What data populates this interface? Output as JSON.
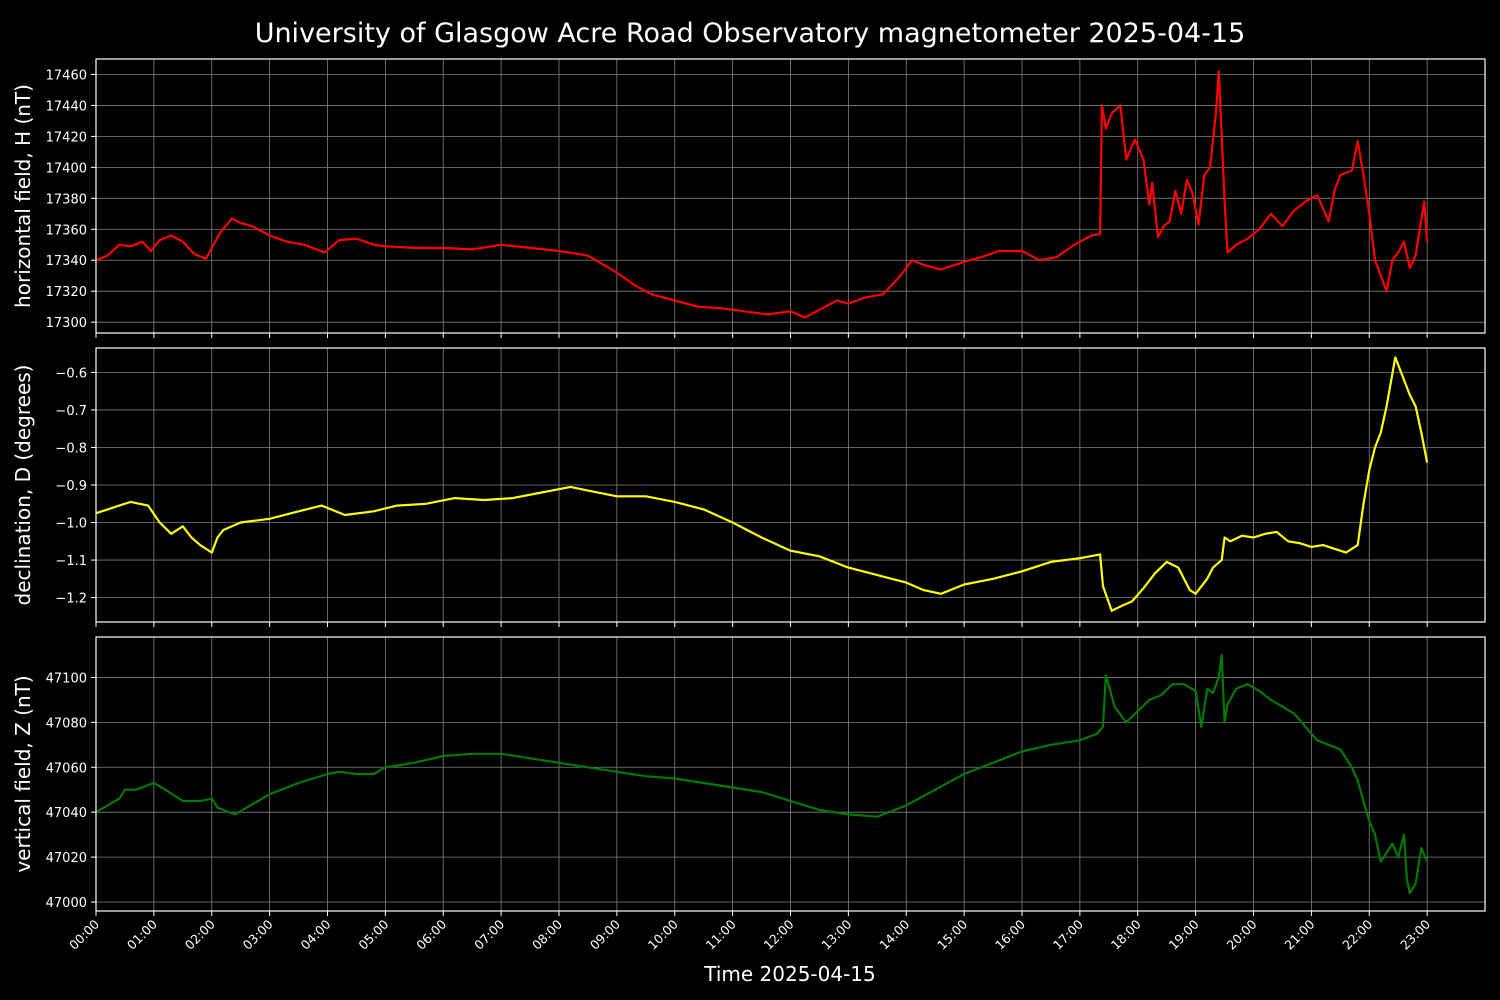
{
  "title": "University of Glasgow Acre Road Observatory magnetometer 2025-04-15",
  "xlabel": "Time 2025-04-15",
  "colors": {
    "background": "#000000",
    "axes": "#ffffff",
    "grid": "#808080",
    "H": "#ff0000",
    "D": "#ffff00",
    "Z": "#007a00"
  },
  "chart_data": [
    {
      "type": "line",
      "ylabel": "horizontal field, H (nT)",
      "ylim": [
        17293,
        17470
      ],
      "yticks": [
        17300,
        17320,
        17340,
        17360,
        17380,
        17400,
        17420,
        17440,
        17460
      ],
      "xlim": [
        0,
        24
      ],
      "xticks": [
        "00:00",
        "01:00",
        "02:00",
        "03:00",
        "04:00",
        "05:00",
        "06:00",
        "07:00",
        "08:00",
        "09:00",
        "10:00",
        "11:00",
        "12:00",
        "13:00",
        "14:00",
        "15:00",
        "16:00",
        "17:00",
        "18:00",
        "19:00",
        "20:00",
        "21:00",
        "22:00",
        "23:00"
      ],
      "grid": true,
      "series": [
        {
          "color": "#ff0000",
          "x": [
            0,
            0.2,
            0.4,
            0.6,
            0.8,
            0.95,
            1.1,
            1.3,
            1.5,
            1.7,
            1.9,
            2.0,
            2.15,
            2.35,
            2.5,
            2.7,
            3.0,
            3.3,
            3.6,
            3.95,
            4.2,
            4.5,
            4.8,
            5.0,
            5.5,
            6.0,
            6.5,
            7.0,
            7.5,
            8.0,
            8.5,
            9.0,
            9.3,
            9.6,
            10.0,
            10.4,
            10.8,
            11.2,
            11.6,
            12.0,
            12.25,
            12.5,
            12.8,
            13.0,
            13.3,
            13.6,
            13.9,
            14.1,
            14.3,
            14.6,
            15.0,
            15.3,
            15.6,
            16.0,
            16.3,
            16.6,
            16.9,
            17.2,
            17.35,
            17.38,
            17.45,
            17.55,
            17.7,
            17.8,
            17.95,
            18.1,
            18.2,
            18.25,
            18.35,
            18.45,
            18.55,
            18.65,
            18.75,
            18.85,
            18.95,
            19.05,
            19.15,
            19.25,
            19.35,
            19.4,
            19.45,
            19.5,
            19.55,
            19.7,
            19.9,
            20.1,
            20.3,
            20.5,
            20.7,
            20.9,
            21.1,
            21.3,
            21.4,
            21.5,
            21.7,
            21.8,
            21.9,
            22.0,
            22.1,
            22.2,
            22.3,
            22.4,
            22.5,
            22.6,
            22.7,
            22.8,
            22.95,
            23.0
          ],
          "y": [
            17340,
            17343,
            17350,
            17349,
            17352,
            17346,
            17353,
            17356,
            17352,
            17344,
            17341,
            17348,
            17358,
            17367,
            17364,
            17362,
            17356,
            17352,
            17350,
            17345,
            17353,
            17354,
            17350,
            17349,
            17348,
            17348,
            17347,
            17350,
            17348,
            17346,
            17343,
            17332,
            17324,
            17318,
            17314,
            17310,
            17309,
            17307,
            17305,
            17307,
            17303,
            17308,
            17314,
            17312,
            17316,
            17318,
            17330,
            17340,
            17337,
            17334,
            17339,
            17342,
            17346,
            17346,
            17340,
            17342,
            17350,
            17356,
            17357,
            17440,
            17425,
            17435,
            17440,
            17405,
            17418,
            17405,
            17376,
            17390,
            17355,
            17362,
            17365,
            17385,
            17370,
            17392,
            17383,
            17363,
            17395,
            17400,
            17435,
            17462,
            17420,
            17378,
            17345,
            17350,
            17354,
            17360,
            17370,
            17362,
            17372,
            17378,
            17382,
            17365,
            17385,
            17395,
            17398,
            17417,
            17395,
            17370,
            17340,
            17330,
            17320,
            17340,
            17345,
            17352,
            17335,
            17343,
            17378,
            17352
          ]
        }
      ]
    },
    {
      "type": "line",
      "ylabel": "declination, D (degrees)",
      "ylim": [
        -1.265,
        -0.535
      ],
      "yticks": [
        -1.2,
        -1.1,
        -1.0,
        -0.9,
        -0.8,
        -0.7,
        -0.6
      ],
      "yticklabels": [
        "−1.2",
        "−1.1",
        "−1.0",
        "−0.9",
        "−0.8",
        "−0.7",
        "−0.6"
      ],
      "xlim": [
        0,
        24
      ],
      "grid": true,
      "series": [
        {
          "color": "#ffff00",
          "x": [
            0,
            0.2,
            0.4,
            0.6,
            0.9,
            1.1,
            1.3,
            1.5,
            1.65,
            1.8,
            2.0,
            2.1,
            2.2,
            2.5,
            3.0,
            3.5,
            3.9,
            4.3,
            4.8,
            5.2,
            5.7,
            6.2,
            6.7,
            7.2,
            7.7,
            8.2,
            8.5,
            9.0,
            9.5,
            10.0,
            10.5,
            11.0,
            11.5,
            12.0,
            12.5,
            13.0,
            13.5,
            14.0,
            14.3,
            14.6,
            15.0,
            15.5,
            16.0,
            16.5,
            17.0,
            17.35,
            17.4,
            17.55,
            17.75,
            17.9,
            18.1,
            18.3,
            18.5,
            18.7,
            18.9,
            19.0,
            19.2,
            19.3,
            19.45,
            19.5,
            19.6,
            19.8,
            20.0,
            20.2,
            20.4,
            20.6,
            20.8,
            21.0,
            21.2,
            21.4,
            21.6,
            21.8,
            21.9,
            22.0,
            22.1,
            22.2,
            22.3,
            22.45,
            22.6,
            22.7,
            22.8,
            22.9,
            23.0
          ],
          "y": [
            -0.975,
            -0.965,
            -0.955,
            -0.945,
            -0.955,
            -1.0,
            -1.03,
            -1.01,
            -1.04,
            -1.06,
            -1.08,
            -1.04,
            -1.02,
            -1.0,
            -0.99,
            -0.97,
            -0.955,
            -0.98,
            -0.97,
            -0.955,
            -0.95,
            -0.935,
            -0.94,
            -0.935,
            -0.92,
            -0.905,
            -0.915,
            -0.93,
            -0.93,
            -0.945,
            -0.965,
            -1.0,
            -1.04,
            -1.075,
            -1.09,
            -1.12,
            -1.14,
            -1.16,
            -1.18,
            -1.19,
            -1.165,
            -1.15,
            -1.13,
            -1.105,
            -1.095,
            -1.085,
            -1.17,
            -1.235,
            -1.22,
            -1.21,
            -1.175,
            -1.135,
            -1.105,
            -1.12,
            -1.18,
            -1.19,
            -1.15,
            -1.12,
            -1.1,
            -1.04,
            -1.05,
            -1.035,
            -1.04,
            -1.03,
            -1.025,
            -1.05,
            -1.055,
            -1.065,
            -1.06,
            -1.07,
            -1.08,
            -1.06,
            -0.95,
            -0.86,
            -0.8,
            -0.76,
            -0.69,
            -0.56,
            -0.62,
            -0.66,
            -0.69,
            -0.76,
            -0.84
          ]
        }
      ]
    },
    {
      "type": "line",
      "ylabel": "vertical field, Z (nT)",
      "ylim": [
        46996,
        47118
      ],
      "yticks": [
        47000,
        47020,
        47040,
        47060,
        47080,
        47100
      ],
      "xlim": [
        0,
        24
      ],
      "grid": true,
      "series": [
        {
          "color": "#007a00",
          "x": [
            0,
            0.2,
            0.4,
            0.5,
            0.7,
            0.9,
            1.0,
            1.2,
            1.5,
            1.8,
            2.0,
            2.1,
            2.2,
            2.4,
            2.6,
            2.8,
            3.0,
            3.5,
            4.0,
            4.2,
            4.5,
            4.8,
            5.0,
            5.5,
            6.0,
            6.5,
            7.0,
            7.5,
            8.0,
            8.5,
            9.0,
            9.5,
            10.0,
            10.5,
            11.0,
            11.5,
            12.0,
            12.5,
            13.0,
            13.5,
            14.0,
            14.5,
            15.0,
            15.5,
            16.0,
            16.5,
            17.0,
            17.3,
            17.4,
            17.45,
            17.6,
            17.8,
            18.0,
            18.2,
            18.4,
            18.6,
            18.8,
            19.0,
            19.1,
            19.2,
            19.3,
            19.4,
            19.45,
            19.5,
            19.55,
            19.7,
            19.9,
            20.1,
            20.3,
            20.5,
            20.7,
            20.9,
            21.1,
            21.3,
            21.5,
            21.7,
            21.8,
            21.9,
            22.0,
            22.1,
            22.2,
            22.3,
            22.4,
            22.5,
            22.6,
            22.65,
            22.7,
            22.8,
            22.9,
            23.0
          ],
          "y": [
            47040,
            47043,
            47046,
            47050,
            47050,
            47052,
            47053,
            47050,
            47045,
            47045,
            47046,
            47042,
            47041,
            47039,
            47042,
            47045,
            47048,
            47053,
            47057,
            47058,
            47057,
            47057,
            47060,
            47062,
            47065,
            47066,
            47066,
            47064,
            47062,
            47060,
            47058,
            47056,
            47055,
            47053,
            47051,
            47049,
            47045,
            47041,
            47039,
            47038,
            47043,
            47050,
            47057,
            47062,
            47067,
            47070,
            47072,
            47075,
            47078,
            47101,
            47087,
            47080,
            47085,
            47090,
            47092,
            47097,
            47097,
            47094,
            47078,
            47095,
            47093,
            47100,
            47110,
            47080,
            47088,
            47095,
            47097,
            47094,
            47090,
            47087,
            47084,
            47078,
            47072,
            47070,
            47068,
            47060,
            47054,
            47045,
            47036,
            47030,
            47018,
            47022,
            47026,
            47020,
            47030,
            47010,
            47004,
            47008,
            47024,
            47018
          ]
        }
      ]
    }
  ]
}
